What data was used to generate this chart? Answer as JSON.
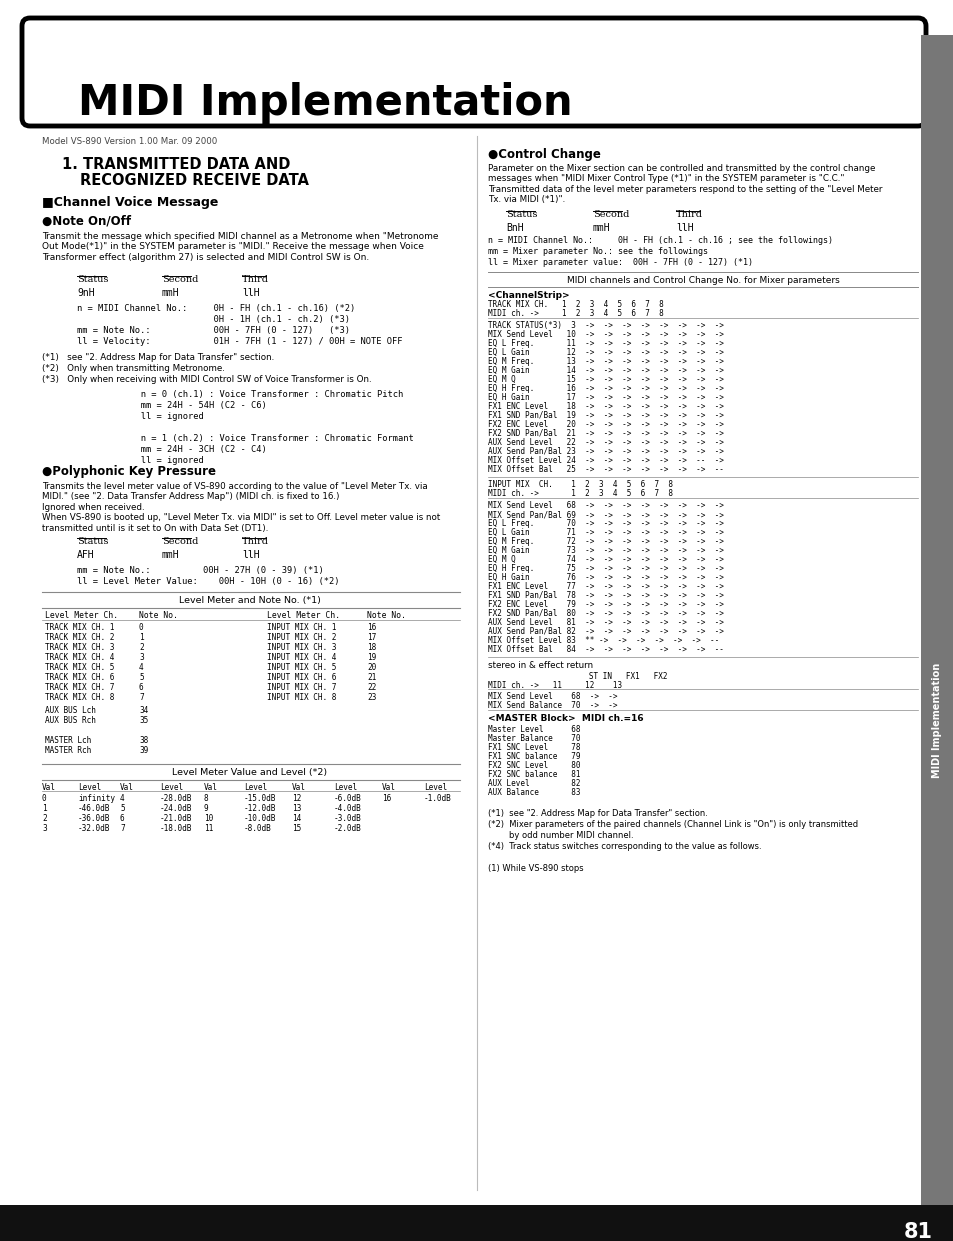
{
  "title": "MIDI Implementation",
  "bg_color": "#ffffff",
  "header_box_color": "#000000",
  "page_number": "81",
  "sidebar_text": "MIDI Implementation",
  "left_col": {
    "model_line": "Model VS-890 Version 1.00 Mar. 09 2000",
    "note_onoff_body": "Transmit the message which specified MIDI channel as a Metronome when \"Metronome\nOut Mode(*1)\" in the SYSTEM parameter is \"MIDI.\" Receive the message when Voice\nTransformer effect (algorithm 27) is selected and MIDI Control SW is On.",
    "note_status_header": [
      "Status",
      "Second",
      "Third"
    ],
    "note_status_vals": [
      "9nH",
      "mmH",
      "llH"
    ],
    "note_params": [
      "n = MIDI Channel No.:     0H - FH (ch.1 - ch.16) (*2)",
      "                          0H - 1H (ch.1 - ch.2) (*3)",
      "mm = Note No.:            00H - 7FH (0 - 127)   (*3)",
      "ll = Velocity:            01H - 7FH (1 - 127) / 00H = NOTE OFF"
    ],
    "note_footnotes": [
      "(*1)   see \"2. Address Map for Data Transfer\" section.",
      "(*2)   Only when transmitting Metronome.",
      "(*3)   Only when receiving with MIDI Control SW of Voice Transformer is On."
    ],
    "note_extra": [
      "               n = 0 (ch.1) : Voice Transformer : Chromatic Pitch",
      "               mm = 24H - 54H (C2 - C6)",
      "               ll = ignored",
      "",
      "               n = 1 (ch.2) : Voice Transformer : Chromatic Formant",
      "               mm = 24H - 3CH (C2 - C4)",
      "               ll = ignored"
    ],
    "poly_body": "Transmits the level meter value of VS-890 according to the value of \"Level Meter Tx. via\nMIDI.\" (see \"2. Data Transfer Address Map\") (MIDI ch. is fixed to 16.)\nIgnored when received.\nWhen VS-890 is booted up, \"Level Meter Tx. via MIDI\" is set to Off. Level meter value is not\ntransmitted until is it set to On with Data Set (DT1).",
    "poly_status_header": [
      "Status",
      "Second",
      "Third"
    ],
    "poly_status_vals": [
      "AFH",
      "mmH",
      "llH"
    ],
    "poly_params": [
      "mm = Note No.:          00H - 27H (0 - 39) (*1)",
      "ll = Level Meter Value:    00H - 10H (0 - 16) (*2)"
    ],
    "level_meter_title": "Level Meter and Note No. (*1)",
    "level_meter_header": [
      "Level Meter Ch.",
      "Note No.",
      "Level Meter Ch.",
      "Note No."
    ],
    "level_meter_rows": [
      [
        "TRACK MIX CH. 1",
        "0",
        "INPUT MIX CH. 1",
        "16"
      ],
      [
        "TRACK MIX CH. 2",
        "1",
        "INPUT MIX CH. 2",
        "17"
      ],
      [
        "TRACK MIX CH. 3",
        "2",
        "INPUT MIX CH. 3",
        "18"
      ],
      [
        "TRACK MIX CH. 4",
        "3",
        "INPUT MIX CH. 4",
        "19"
      ],
      [
        "TRACK MIX CH. 5",
        "4",
        "INPUT MIX CH. 5",
        "20"
      ],
      [
        "TRACK MIX CH. 6",
        "5",
        "INPUT MIX CH. 6",
        "21"
      ],
      [
        "TRACK MIX CH. 7",
        "6",
        "INPUT MIX CH. 7",
        "22"
      ],
      [
        "TRACK MIX CH. 8",
        "7",
        "INPUT MIX CH. 8",
        "23"
      ]
    ],
    "level_meter_extra": [
      [
        "AUX BUS Lch",
        "34"
      ],
      [
        "AUX BUS Rch",
        "35"
      ],
      [
        "",
        ""
      ],
      [
        "MASTER Lch",
        "38"
      ],
      [
        "MASTER Rch",
        "39"
      ]
    ],
    "level_value_title": "Level Meter Value and Level (*2)",
    "level_value_header": [
      "Val",
      "Level",
      "Val",
      "Level",
      "Val",
      "Level",
      "Val",
      "Level",
      "Val",
      "Level"
    ],
    "level_value_rows": [
      [
        "0",
        "infinity",
        "4",
        "-28.0dB",
        "8",
        "-15.0dB",
        "12",
        "-6.0dB",
        "16",
        "-1.0dB"
      ],
      [
        "1",
        "-46.0dB",
        "5",
        "-24.0dB",
        "9",
        "-12.0dB",
        "13",
        "-4.0dB",
        "",
        ""
      ],
      [
        "2",
        "-36.0dB",
        "6",
        "-21.0dB",
        "10",
        "-10.0dB",
        "14",
        "-3.0dB",
        "",
        ""
      ],
      [
        "3",
        "-32.0dB",
        "7",
        "-18.0dB",
        "11",
        "-8.0dB",
        "15",
        "-2.0dB",
        "",
        ""
      ]
    ]
  },
  "right_col": {
    "control_change_body": "Parameter on the Mixer section can be controlled and transmitted by the control change\nmessages when \"MIDI Mixer Control Type (*1)\" in the SYSTEM parameter is \"C.C.\"\nTransmitted data of the level meter parameters respond to the setting of the \"Level Meter\nTx. via MIDI (*1)\".",
    "cc_status_header": [
      "Status",
      "Second",
      "Third"
    ],
    "cc_status_vals": [
      "BnH",
      "mmH",
      "llH"
    ],
    "cc_params": [
      "n = MIDI Channel No.:     0H - FH (ch.1 - ch.16 ; see the followings)",
      "mm = Mixer parameter No.: see the followings",
      "ll = Mixer parameter value:  00H - 7FH (0 - 127) (*1)"
    ],
    "cc_midi_channels_title": "MIDI channels and Control Change No. for Mixer parameters",
    "channel_strip_header": "TRACK MIX CH.   1  2  3  4  5  6  7  8\nMIDI ch. ->     1  2  3  4  5  6  7  8",
    "channel_strip_rows": [
      "TRACK STATUS(*3)  3  ->  ->  ->  ->  ->  ->  ->  ->",
      "MIX Send Level   10  ->  ->  ->  ->  ->  ->  ->  ->",
      "EQ L Freq.       11  ->  ->  ->  ->  ->  ->  ->  ->",
      "EQ L Gain        12  ->  ->  ->  ->  ->  ->  ->  ->",
      "EQ M Freq.       13  ->  ->  ->  ->  ->  ->  ->  ->",
      "EQ M Gain        14  ->  ->  ->  ->  ->  ->  ->  ->",
      "EQ M Q           15  ->  ->  ->  ->  ->  ->  ->  ->",
      "EQ H Freq.       16  ->  ->  ->  ->  ->  ->  ->  ->",
      "EQ H Gain        17  ->  ->  ->  ->  ->  ->  ->  ->",
      "FX1 ENC Level    18  ->  ->  ->  ->  ->  ->  ->  ->",
      "FX1 SND Pan/Bal  19  ->  ->  ->  ->  ->  ->  ->  ->",
      "FX2 ENC Level    20  ->  ->  ->  ->  ->  ->  ->  ->",
      "FX2 SND Pan/Bal  21  ->  ->  ->  ->  ->  ->  ->  ->",
      "AUX Send Level   22  ->  ->  ->  ->  ->  ->  ->  ->",
      "AUX Send Pan/Bal 23  ->  ->  ->  ->  ->  ->  ->  ->",
      "MIX Offset Level 24  ->  ->  ->  ->  ->  ->  --  ->",
      "MIX Offset Bal   25  ->  ->  ->  ->  ->  ->  ->  --"
    ],
    "input_mix_header": "INPUT MIX  CH.    1  2  3  4  5  6  7  8\nMIDI ch. ->       1  2  3  4  5  6  7  8",
    "input_mix_rows": [
      "MIX Send Level   68  ->  ->  ->  ->  ->  ->  ->  ->",
      "MIX Send Pan/Bal 69  ->  ->  ->  ->  ->  ->  ->  ->",
      "EQ L Freq.       70  ->  ->  ->  ->  ->  ->  ->  ->",
      "EQ L Gain        71  ->  ->  ->  ->  ->  ->  ->  ->",
      "EQ M Freq.       72  ->  ->  ->  ->  ->  ->  ->  ->",
      "EQ M Gain        73  ->  ->  ->  ->  ->  ->  ->  ->",
      "EQ M Q           74  ->  ->  ->  ->  ->  ->  ->  ->",
      "EQ H Freq.       75  ->  ->  ->  ->  ->  ->  ->  ->",
      "EQ H Gain        76  ->  ->  ->  ->  ->  ->  ->  ->",
      "FX1 ENC Level    77  ->  ->  ->  ->  ->  ->  ->  ->",
      "FX1 SND Pan/Bal  78  ->  ->  ->  ->  ->  ->  ->  ->",
      "FX2 ENC Level    79  ->  ->  ->  ->  ->  ->  ->  ->",
      "FX2 SND Pan/Bal  80  ->  ->  ->  ->  ->  ->  ->  ->",
      "AUX Send Level   81  ->  ->  ->  ->  ->  ->  ->  ->",
      "AUX Send Pan/Bal 82  ->  ->  ->  ->  ->  ->  ->  ->",
      "MIX Offset Level 83  ** ->  ->  ->  ->  ->  ->  --",
      "MIX Offset Bal   84  ->  ->  ->  ->  ->  ->  ->  --"
    ],
    "stereo_title": "stereo in & effect return",
    "stereo_header": "           ST IN   FX1   FX2",
    "stereo_midi_ch": "MIDI ch. ->   11     12    13",
    "stereo_rows": [
      "MIX Send Level    68  ->  ->",
      "MIX Send Balance  70  ->  ->"
    ],
    "master_block_title": "<MASTER Block>  MIDI ch.=16",
    "master_block_rows": [
      "Master Level      68",
      "Master Balance    70",
      "FX1 SNC Level     78",
      "FX1 SNC balance   79",
      "FX2 SNC Level     80",
      "FX2 SNC balance   81",
      "AUX Level         82",
      "AUX Balance       83"
    ],
    "right_footnotes": [
      "(*1)  see \"2. Address Map for Data Transfer\" section.",
      "(*2)  Mixer parameters of the paired channels (Channel Link is \"On\") is only transmitted",
      "        by odd number MIDI channel.",
      "(*4)  Track status switches corresponding to the value as follows.",
      "",
      "(1) While VS-890 stops"
    ]
  }
}
